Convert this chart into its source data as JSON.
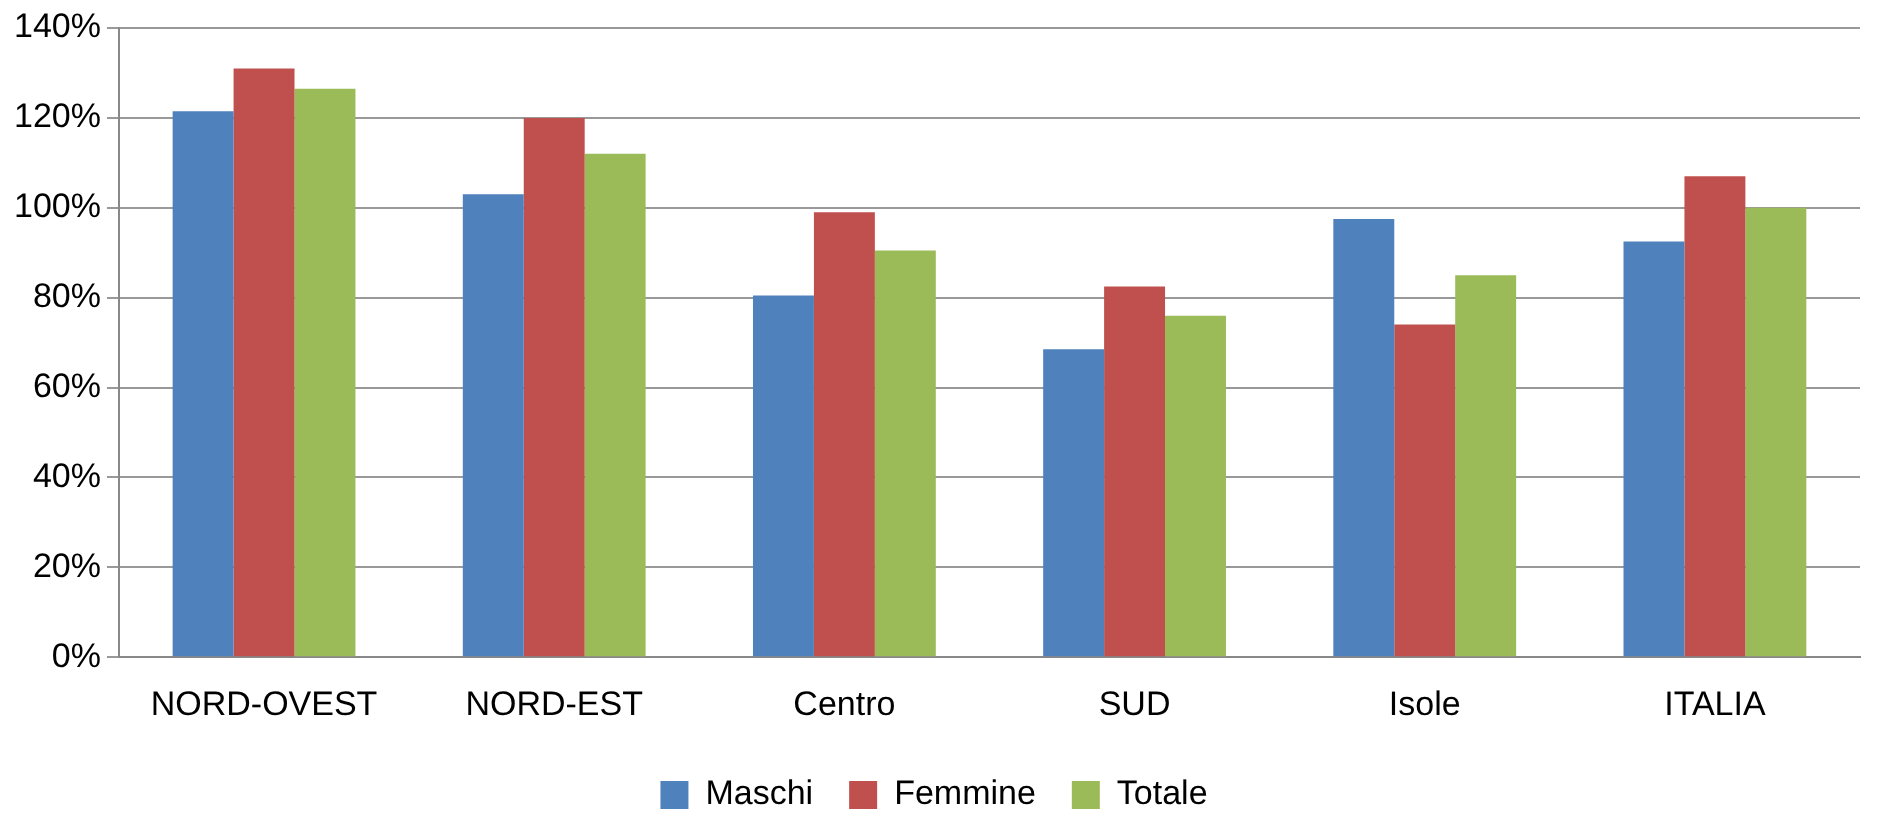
{
  "chart_data": {
    "type": "bar",
    "categories": [
      "NORD-OVEST",
      "NORD-EST",
      "Centro",
      "SUD",
      "Isole",
      "ITALIA"
    ],
    "series": [
      {
        "name": "Maschi",
        "color": "#4f81bd",
        "values": [
          121.5,
          103,
          80.5,
          68.5,
          97.5,
          92.5
        ]
      },
      {
        "name": "Femmine",
        "color": "#c0504d",
        "values": [
          131,
          120,
          99,
          82.5,
          74,
          107
        ]
      },
      {
        "name": "Totale",
        "color": "#9bbb59",
        "values": [
          126.5,
          112,
          90.5,
          76,
          85,
          100
        ]
      }
    ],
    "ylim": [
      0,
      140
    ],
    "yticks": [
      {
        "value": 0,
        "label": "0%"
      },
      {
        "value": 20,
        "label": "20%"
      },
      {
        "value": 40,
        "label": "40%"
      },
      {
        "value": 60,
        "label": "60%"
      },
      {
        "value": 80,
        "label": "80%"
      },
      {
        "value": 100,
        "label": "100%"
      },
      {
        "value": 120,
        "label": "120%"
      },
      {
        "value": 140,
        "label": "140%"
      }
    ],
    "grid": "y",
    "legend": "bottom"
  }
}
